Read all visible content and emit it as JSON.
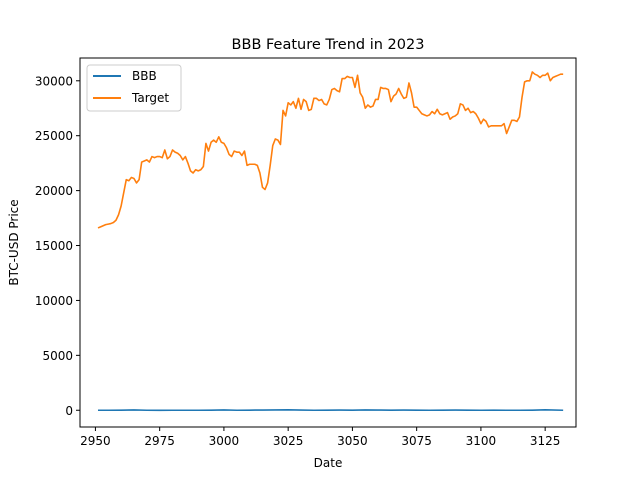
{
  "chart_data": {
    "type": "line",
    "title": "BBB Feature Trend in 2023",
    "xlabel": "Date",
    "ylabel": "BTC-USD Price",
    "xlim": [
      2944,
      3137
    ],
    "ylim": [
      -1525,
      32075
    ],
    "xticks": [
      2950,
      2975,
      3000,
      3025,
      3050,
      3075,
      3100,
      3125
    ],
    "yticks": [
      0,
      5000,
      10000,
      15000,
      20000,
      25000,
      30000
    ],
    "grid": false,
    "legend_position": "upper-left",
    "series": [
      {
        "name": "BBB",
        "color": "#1f77b4",
        "x": [
          2951,
          2955,
          2960,
          2965,
          2970,
          2975,
          2980,
          2985,
          2990,
          2995,
          3000,
          3005,
          3010,
          3015,
          3020,
          3025,
          3030,
          3035,
          3040,
          3045,
          3050,
          3055,
          3060,
          3065,
          3070,
          3075,
          3080,
          3085,
          3090,
          3095,
          3100,
          3105,
          3110,
          3115,
          3120,
          3125,
          3132
        ],
        "y": [
          0,
          0,
          10,
          30,
          0,
          -10,
          0,
          0,
          0,
          10,
          30,
          0,
          10,
          20,
          30,
          40,
          20,
          0,
          10,
          20,
          10,
          30,
          20,
          10,
          20,
          10,
          0,
          10,
          20,
          10,
          0,
          10,
          0,
          0,
          10,
          40,
          0
        ]
      },
      {
        "name": "Target",
        "color": "#ff7f0e",
        "x": [
          2951,
          2952,
          2953,
          2954,
          2955,
          2956,
          2957,
          2958,
          2959,
          2960,
          2961,
          2962,
          2963,
          2964,
          2965,
          2966,
          2967,
          2968,
          2969,
          2970,
          2971,
          2972,
          2973,
          2974,
          2975,
          2976,
          2977,
          2978,
          2979,
          2980,
          2981,
          2982,
          2983,
          2984,
          2985,
          2986,
          2987,
          2988,
          2989,
          2990,
          2991,
          2992,
          2993,
          2994,
          2995,
          2996,
          2997,
          2998,
          2999,
          3000,
          3001,
          3002,
          3003,
          3004,
          3005,
          3006,
          3007,
          3008,
          3009,
          3010,
          3011,
          3012,
          3013,
          3014,
          3015,
          3016,
          3017,
          3018,
          3019,
          3020,
          3021,
          3022,
          3023,
          3024,
          3025,
          3026,
          3027,
          3028,
          3029,
          3030,
          3031,
          3032,
          3033,
          3034,
          3035,
          3036,
          3037,
          3038,
          3039,
          3040,
          3041,
          3042,
          3043,
          3044,
          3045,
          3046,
          3047,
          3048,
          3049,
          3050,
          3051,
          3052,
          3053,
          3054,
          3055,
          3056,
          3057,
          3058,
          3059,
          3060,
          3061,
          3062,
          3063,
          3064,
          3065,
          3066,
          3067,
          3068,
          3069,
          3070,
          3071,
          3072,
          3073,
          3074,
          3075,
          3076,
          3077,
          3078,
          3079,
          3080,
          3081,
          3082,
          3083,
          3084,
          3085,
          3086,
          3087,
          3088,
          3089,
          3090,
          3091,
          3092,
          3093,
          3094,
          3095,
          3096,
          3097,
          3098,
          3099,
          3100,
          3101,
          3102,
          3103,
          3104,
          3105,
          3106,
          3107,
          3108,
          3109,
          3110,
          3111,
          3112,
          3113,
          3114,
          3115,
          3116,
          3117,
          3118,
          3119,
          3120,
          3121,
          3122,
          3123,
          3124,
          3125,
          3126,
          3127,
          3128,
          3129,
          3130,
          3131,
          3132
        ],
        "y": [
          16600,
          16700,
          16800,
          16900,
          16950,
          17000,
          17100,
          17300,
          17800,
          18600,
          19800,
          21000,
          20900,
          21200,
          21100,
          20700,
          21000,
          22600,
          22700,
          22800,
          22600,
          23100,
          23000,
          23100,
          23100,
          23000,
          23700,
          22900,
          23100,
          23700,
          23500,
          23400,
          23200,
          22800,
          23100,
          22500,
          21800,
          21600,
          21900,
          21800,
          21900,
          22200,
          24300,
          23600,
          24400,
          24600,
          24400,
          24900,
          24400,
          24300,
          23900,
          23300,
          23100,
          23600,
          23500,
          23500,
          23200,
          23600,
          22300,
          22400,
          22400,
          22400,
          22300,
          21600,
          20300,
          20100,
          20700,
          22300,
          24100,
          24700,
          24600,
          24200,
          27300,
          26800,
          28000,
          27800,
          28100,
          27500,
          28400,
          27400,
          28300,
          28100,
          27300,
          27400,
          28400,
          28400,
          28200,
          28300,
          27900,
          27800,
          28300,
          29200,
          29300,
          29100,
          29000,
          30200,
          30200,
          30400,
          30300,
          30300,
          29400,
          30500,
          28900,
          28500,
          27500,
          27800,
          27600,
          27700,
          28300,
          28300,
          29400,
          29300,
          29300,
          29200,
          28100,
          28600,
          28800,
          29300,
          28800,
          28400,
          28500,
          29800,
          28900,
          27600,
          27600,
          27300,
          27000,
          26900,
          26800,
          26900,
          27200,
          27000,
          27400,
          27000,
          26900,
          27000,
          27100,
          26500,
          26700,
          26800,
          27000,
          27900,
          27800,
          27300,
          27500,
          27100,
          27200,
          27000,
          26600,
          26100,
          26500,
          26300,
          25800,
          25900,
          25900,
          25900,
          25900,
          25900,
          26100,
          25200,
          25800,
          26400,
          26400,
          26300,
          26700,
          28500,
          29900,
          30000,
          30000,
          30800,
          30600,
          30500,
          30300,
          30500,
          30500,
          30700,
          30000,
          30300,
          30400,
          30500,
          30600,
          30600
        ]
      }
    ]
  }
}
